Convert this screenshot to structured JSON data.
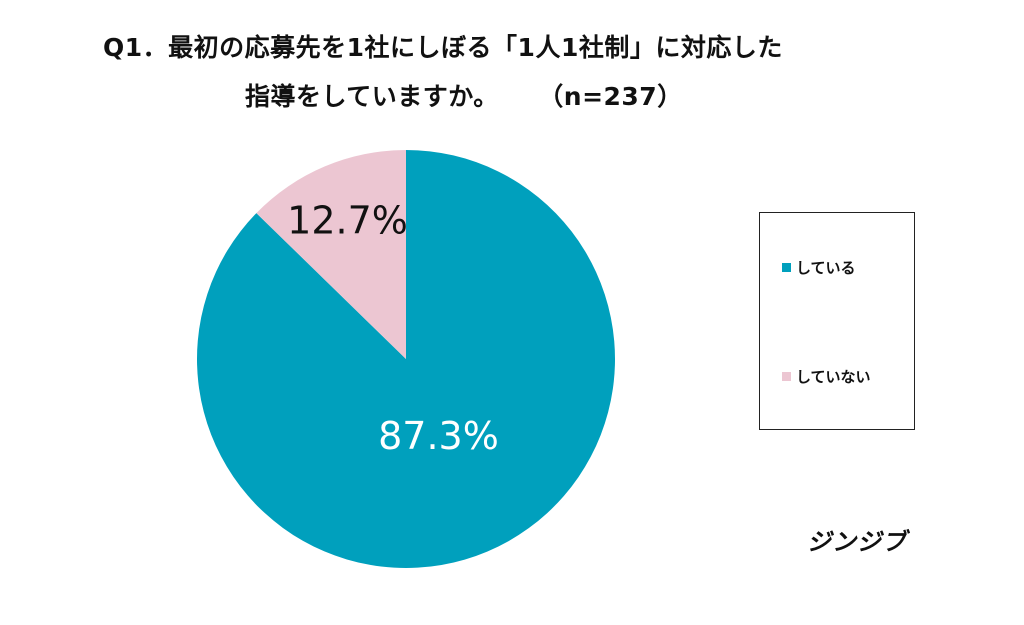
{
  "title": {
    "line1": "Q1．最初の応募先を1社にしぼる「1人1社制」に対応した",
    "line2": "指導をしていますか。",
    "sample_size": "（n=237）"
  },
  "chart_data": {
    "type": "pie",
    "title": "Q1．最初の応募先を1社にしぼる「1人1社制」に対応した指導をしていますか。",
    "sample_size": "n=237",
    "categories": [
      "している",
      "していない"
    ],
    "values": [
      87.3,
      12.7
    ],
    "unit": "%",
    "data_labels": [
      "87.3%",
      "12.7%"
    ],
    "colors": [
      "#00a0bd",
      "#ecc6d2"
    ],
    "label_colors": [
      "#ffffff",
      "#111111"
    ],
    "start_angle_deg": 0,
    "direction": "clockwise",
    "legend_position": "right"
  },
  "legend": {
    "items": [
      {
        "label": "している",
        "color": "#00a0bd"
      },
      {
        "label": "していない",
        "color": "#ecc6d2"
      }
    ]
  },
  "brand": {
    "name": "ジンジブ"
  }
}
